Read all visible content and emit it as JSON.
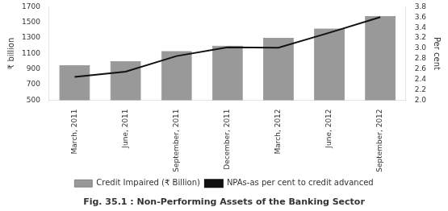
{
  "chart_data": {
    "type": "bar",
    "title": "Fig. 35.1 : Non-Performing Assets of the Banking Sector",
    "categories": [
      "March, 2011",
      "June, 2011",
      "September, 2011",
      "December, 2011",
      "March, 2012",
      "June, 2012",
      "September, 2012"
    ],
    "series": [
      {
        "name": "Credit Impaired (₹ Billion)",
        "type": "bar",
        "color": "#999999",
        "values": [
          950,
          1000,
          1130,
          1200,
          1300,
          1420,
          1580
        ]
      },
      {
        "name": "NPAs-as per cent to credit advanced",
        "type": "line",
        "color": "#111111",
        "marker": "none",
        "axis": "y2",
        "values": [
          2.45,
          2.55,
          2.85,
          3.02,
          3.01,
          3.3,
          3.6
        ]
      }
    ],
    "ylabel": "₹ billion",
    "y2label": "Per cent",
    "ylim": [
      500,
      1700
    ],
    "yticks": [
      500,
      700,
      900,
      1100,
      1300,
      1500,
      1700
    ],
    "y2lim": [
      2.0,
      3.8
    ],
    "y2ticks": [
      {
        "value": 2.0,
        "label": "2.0"
      },
      2.2,
      2.4,
      2.6,
      2.8,
      {
        "value": 3.0,
        "label": "3.0"
      },
      3.2,
      3.4,
      3.6,
      3.8
    ],
    "grid": false,
    "legend": "bottom"
  }
}
